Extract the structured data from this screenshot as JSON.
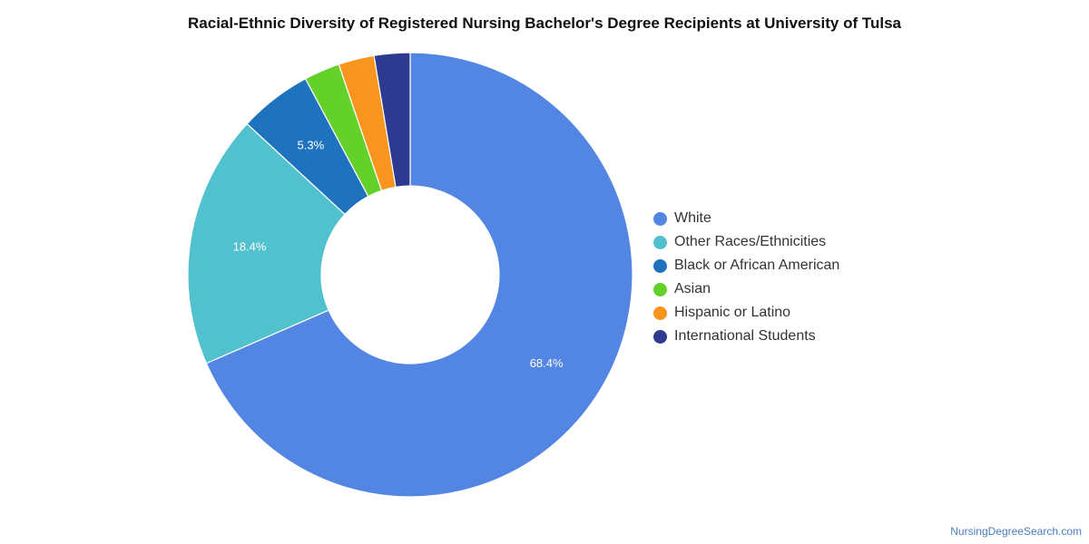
{
  "chart_data": {
    "type": "pie",
    "subtype": "donut",
    "title": "Racial-Ethnic Diversity of Registered Nursing Bachelor's Degree Recipients at University of Tulsa",
    "slices": [
      {
        "label": "White",
        "value": 68.4,
        "display": "68.4%",
        "color": "#5385e2"
      },
      {
        "label": "Other Races/Ethnicities",
        "value": 18.4,
        "display": "18.4%",
        "color": "#51c1ce"
      },
      {
        "label": "Black or African American",
        "value": 5.3,
        "display": "5.3%",
        "color": "#1f72bd"
      },
      {
        "label": "Asian",
        "value": 2.6,
        "display": "",
        "color": "#63d12a"
      },
      {
        "label": "Hispanic or Latino",
        "value": 2.6,
        "display": "",
        "color": "#f7951e"
      },
      {
        "label": "International Students",
        "value": 2.6,
        "display": "",
        "color": "#2d3a8f"
      }
    ],
    "legend_position": "right"
  },
  "footer": {
    "source": "NursingDegreeSearch.com"
  }
}
